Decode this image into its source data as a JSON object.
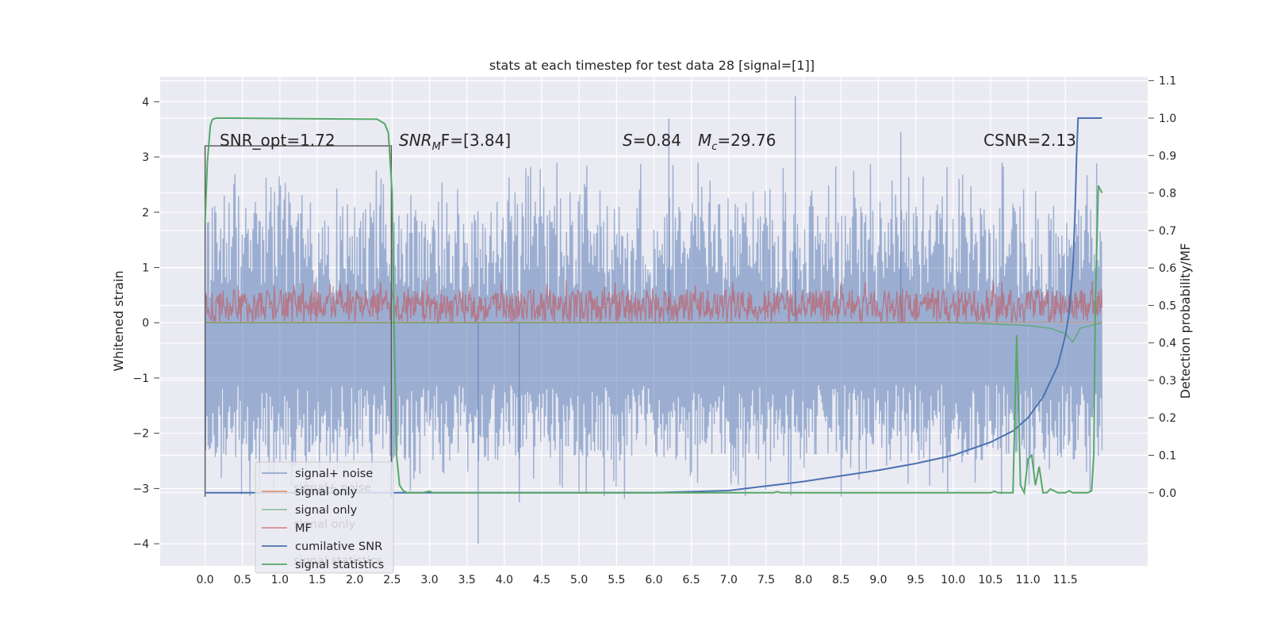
{
  "chart_data": {
    "type": "line",
    "title": "stats at each timestep for test data 28 [signal=[1]]",
    "xlabel": "",
    "ylabel": "Whitened strain",
    "y2label": "Detection probability/MF",
    "xlim": [
      -0.6,
      12.6
    ],
    "ylim": [
      -4.4,
      4.45
    ],
    "y2lim": [
      -0.195,
      1.11
    ],
    "x_ticks": [
      "0.0",
      "0.5",
      "1.0",
      "1.5",
      "2.0",
      "2.5",
      "3.0",
      "3.5",
      "4.0",
      "4.5",
      "5.0",
      "5.5",
      "6.0",
      "6.5",
      "7.0",
      "7.5",
      "8.0",
      "8.5",
      "9.0",
      "9.5",
      "10.0",
      "10.5",
      "11.0",
      "11.5"
    ],
    "y_ticks": [
      "4",
      "3",
      "2",
      "1",
      "0",
      "−1",
      "−2",
      "−3",
      "−4"
    ],
    "y2_ticks": [
      "1.1",
      "1.0",
      "0.9",
      "0.8",
      "0.7",
      "0.6",
      "0.5",
      "0.4",
      "0.3",
      "0.2",
      "0.1",
      "0.0"
    ],
    "grid": true,
    "legend_position": "lower-left",
    "annotations": {
      "snr_opt": "SNR_opt=1.72",
      "snr_mf_main": "SNR",
      "snr_mf_sub": "M",
      "snr_mf_rest": "F=[3.84]",
      "s_label": "S",
      "s_value": "=0.84",
      "mc_label": "M",
      "mc_sub": "c",
      "mc_value": "=29.76",
      "csnr": "CSNR=2.13"
    },
    "legend": [
      {
        "label": "signal+ noise",
        "color": "#4c72b0",
        "alpha": 0.55
      },
      {
        "label": "signal only",
        "color": "#dd8452",
        "alpha": 0.8
      },
      {
        "label": "signal only",
        "color": "#55a868",
        "alpha": 0.6
      },
      {
        "label": "MF",
        "color": "#c44e52",
        "alpha": 0.6
      },
      {
        "label": "cumilative SNR",
        "color": "#4c72b0",
        "alpha": 1.0
      },
      {
        "label": "signal statistics",
        "color": "#55a868",
        "alpha": 1.0
      }
    ],
    "legend_ghost_labels": [
      "signal+ noise",
      "signal only",
      "signal statistics"
    ],
    "series": [
      {
        "name": "signal+ noise",
        "axis": "left",
        "x_range": [
          0.0,
          11.99
        ],
        "min": -4.0,
        "max": 4.1,
        "band": [
          -2.3,
          2.2
        ]
      },
      {
        "name": "MF",
        "axis": "left",
        "x_range": [
          0.0,
          11.99
        ],
        "band": [
          0.0,
          0.6
        ]
      },
      {
        "name": "signal only",
        "axis": "left",
        "x": [
          0.0,
          10.0,
          10.5,
          11.0,
          11.3,
          11.5,
          11.6,
          11.7,
          11.99
        ],
        "y": [
          0.0,
          0.0,
          -0.02,
          -0.05,
          -0.1,
          -0.2,
          -0.35,
          -0.1,
          0.0
        ]
      },
      {
        "name": "cumilative SNR",
        "axis": "right",
        "x": [
          0.0,
          6.0,
          7.0,
          8.0,
          9.0,
          9.5,
          10.0,
          10.5,
          10.8,
          11.0,
          11.2,
          11.4,
          11.5,
          11.55,
          11.6,
          11.63,
          11.65,
          11.67,
          11.99
        ],
        "y": [
          0.0,
          0.0,
          0.006,
          0.03,
          0.06,
          0.078,
          0.1,
          0.135,
          0.165,
          0.2,
          0.255,
          0.34,
          0.42,
          0.48,
          0.6,
          0.75,
          0.9,
          1.0,
          1.0
        ]
      },
      {
        "name": "signal statistics",
        "axis": "right",
        "x": [
          0.0,
          0.03,
          0.07,
          0.1,
          0.15,
          0.3,
          2.3,
          2.4,
          2.45,
          2.5,
          2.53,
          2.56,
          2.6,
          2.65,
          2.7,
          2.8,
          2.9,
          3.0,
          3.05,
          7.6,
          7.65,
          7.7,
          10.5,
          10.55,
          10.6,
          10.8,
          10.85,
          10.9,
          10.95,
          11.0,
          11.05,
          11.1,
          11.15,
          11.2,
          11.25,
          11.3,
          11.35,
          11.4,
          11.45,
          11.5,
          11.55,
          11.6,
          11.65,
          11.7,
          11.75,
          11.8,
          11.85,
          11.88,
          11.9,
          11.94,
          11.99
        ],
        "y": [
          0.72,
          0.88,
          0.98,
          0.997,
          1.0,
          1.0,
          0.997,
          0.985,
          0.96,
          0.8,
          0.4,
          0.1,
          0.02,
          0.005,
          0.0,
          0.0,
          0.0,
          0.004,
          0.0,
          0.0,
          0.003,
          0.0,
          0.0,
          0.004,
          0.0,
          0.0,
          0.42,
          0.02,
          0.0,
          0.09,
          0.1,
          0.02,
          0.07,
          0.0,
          0.0,
          0.01,
          0.005,
          0.0,
          0.0,
          0.0,
          0.005,
          0.0,
          0.0,
          0.0,
          0.0,
          0.0,
          0.005,
          0.1,
          0.5,
          0.82,
          0.8
        ]
      },
      {
        "name": "window marker",
        "axis": "left",
        "x": [
          0.0,
          0.0,
          2.49,
          2.49,
          2.5
        ],
        "y": [
          -3.15,
          3.2,
          3.2,
          -3.15,
          -3.15
        ]
      }
    ]
  }
}
